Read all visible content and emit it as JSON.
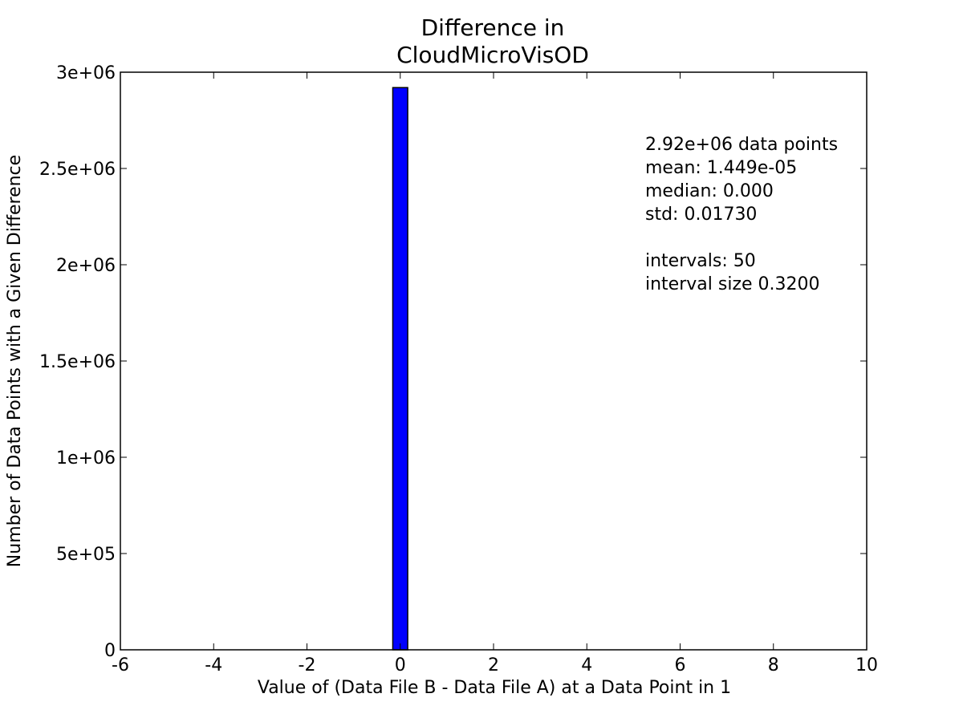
{
  "chart_data": {
    "type": "bar",
    "title_lines": [
      "Difference in",
      "CloudMicroVisOD"
    ],
    "xlabel": "Value of (Data File B - Data File A) at a Data Point in 1",
    "ylabel": "Number of Data Points with a Given Difference",
    "xlim": [
      -6,
      10
    ],
    "ylim": [
      0,
      3000000
    ],
    "x_ticks": [
      -6,
      -4,
      -2,
      0,
      2,
      4,
      6,
      8,
      10
    ],
    "x_tick_labels": [
      "-6",
      "-4",
      "-2",
      "0",
      "2",
      "4",
      "6",
      "8",
      "10"
    ],
    "y_ticks": [
      0,
      500000,
      1000000,
      1500000,
      2000000,
      2500000,
      3000000
    ],
    "y_tick_labels": [
      "0",
      "5e+05",
      "1e+06",
      "1.5e+06",
      "2e+06",
      "2.5e+06",
      "3e+06"
    ],
    "bars": [
      {
        "x_start": -0.16,
        "x_end": 0.16,
        "value": 2920000
      }
    ],
    "bar_color": "#0000ff",
    "grid": false,
    "annotation_lines": [
      "2.92e+06 data points",
      "mean: 1.449e-05",
      "median: 0.000",
      "std: 0.01730",
      "",
      "intervals: 50",
      "interval size 0.3200"
    ]
  }
}
